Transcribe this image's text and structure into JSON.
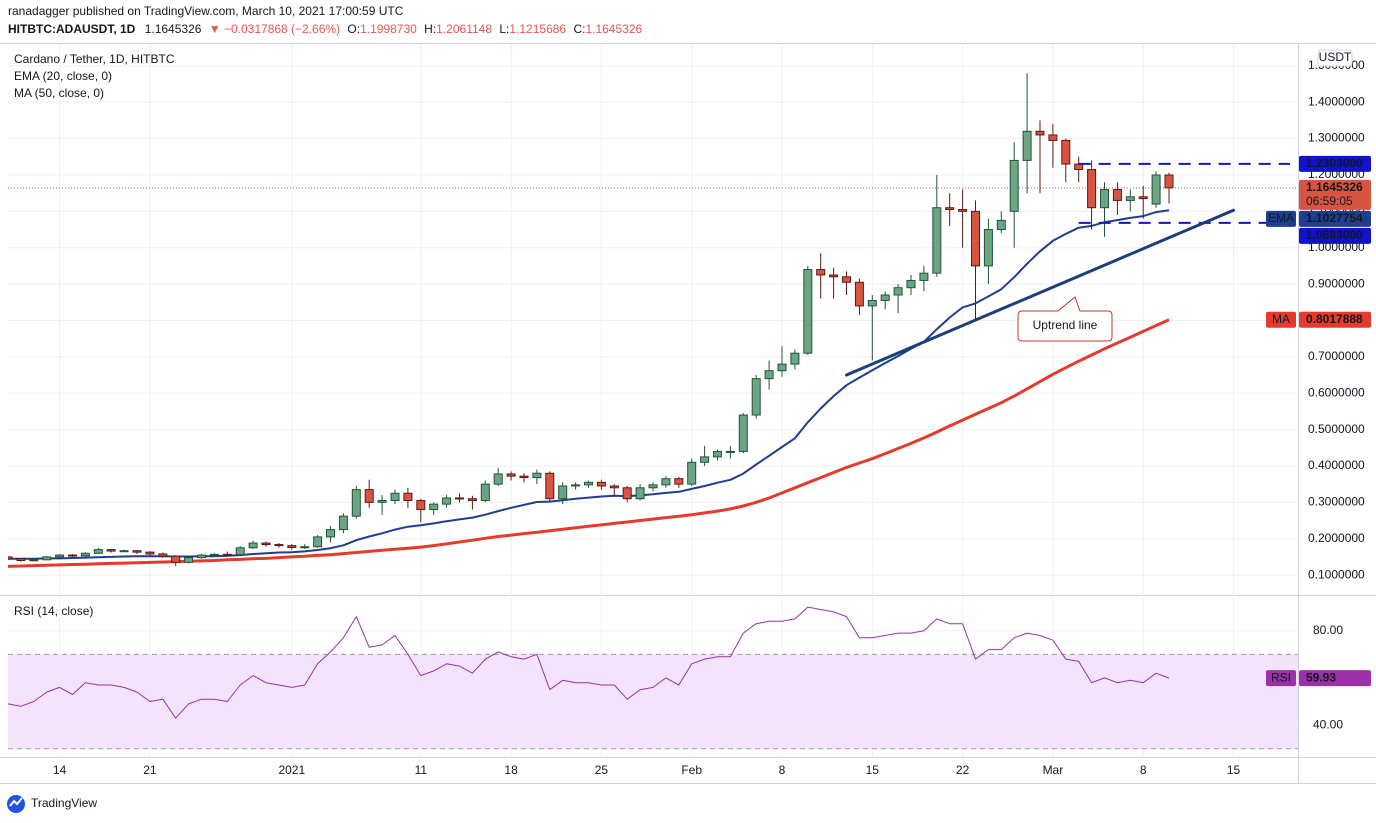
{
  "header": {
    "publisher": "ranadagger published on TradingView.com, March 10, 2021 17:00:59 UTC",
    "symbol": "HITBTC:ADAUSDT, 1D",
    "last": "1.1645326",
    "change": "▼ −0.0317868 (−2.66%)",
    "ohlc": [
      {
        "key": "O:",
        "value": "1.1998730"
      },
      {
        "key": "H:",
        "value": "1.2061148"
      },
      {
        "key": "L:",
        "value": "1.1215686"
      },
      {
        "key": "C:",
        "value": "1.1645326"
      }
    ]
  },
  "chart_data": [
    {
      "type": "candlestick",
      "title": "Cardano / Tether, 1D, HITBTC",
      "unit": "USDT",
      "up_color": "#6ba583",
      "down_color": "#d75442",
      "x": [
        "2020-12-10",
        "2020-12-11",
        "2020-12-12",
        "2020-12-13",
        "2020-12-14",
        "2020-12-15",
        "2020-12-16",
        "2020-12-17",
        "2020-12-18",
        "2020-12-19",
        "2020-12-20",
        "2020-12-21",
        "2020-12-22",
        "2020-12-23",
        "2020-12-24",
        "2020-12-25",
        "2020-12-26",
        "2020-12-27",
        "2020-12-28",
        "2020-12-29",
        "2020-12-30",
        "2020-12-31",
        "2021-01-01",
        "2021-01-02",
        "2021-01-03",
        "2021-01-04",
        "2021-01-05",
        "2021-01-06",
        "2021-01-07",
        "2021-01-08",
        "2021-01-09",
        "2021-01-10",
        "2021-01-11",
        "2021-01-12",
        "2021-01-13",
        "2021-01-14",
        "2021-01-15",
        "2021-01-16",
        "2021-01-17",
        "2021-01-18",
        "2021-01-19",
        "2021-01-20",
        "2021-01-21",
        "2021-01-22",
        "2021-01-23",
        "2021-01-24",
        "2021-01-25",
        "2021-01-26",
        "2021-01-27",
        "2021-01-28",
        "2021-01-29",
        "2021-01-30",
        "2021-01-31",
        "2021-02-01",
        "2021-02-02",
        "2021-02-03",
        "2021-02-04",
        "2021-02-05",
        "2021-02-06",
        "2021-02-07",
        "2021-02-08",
        "2021-02-09",
        "2021-02-10",
        "2021-02-11",
        "2021-02-12",
        "2021-02-13",
        "2021-02-14",
        "2021-02-15",
        "2021-02-16",
        "2021-02-17",
        "2021-02-18",
        "2021-02-19",
        "2021-02-20",
        "2021-02-21",
        "2021-02-22",
        "2021-02-23",
        "2021-02-24",
        "2021-02-25",
        "2021-02-26",
        "2021-02-27",
        "2021-02-28",
        "2021-03-01",
        "2021-03-02",
        "2021-03-03",
        "2021-03-04",
        "2021-03-05",
        "2021-03-06",
        "2021-03-07",
        "2021-03-08",
        "2021-03-09",
        "2021-03-10"
      ],
      "open": [
        0.15,
        0.145,
        0.14,
        0.142,
        0.15,
        0.155,
        0.153,
        0.16,
        0.17,
        0.166,
        0.167,
        0.163,
        0.158,
        0.152,
        0.135,
        0.148,
        0.155,
        0.157,
        0.156,
        0.175,
        0.188,
        0.184,
        0.181,
        0.176,
        0.178,
        0.205,
        0.225,
        0.262,
        0.335,
        0.3,
        0.305,
        0.325,
        0.305,
        0.28,
        0.295,
        0.312,
        0.31,
        0.305,
        0.35,
        0.378,
        0.372,
        0.368,
        0.38,
        0.31,
        0.345,
        0.348,
        0.355,
        0.345,
        0.34,
        0.31,
        0.34,
        0.348,
        0.365,
        0.35,
        0.41,
        0.425,
        0.44,
        0.44,
        0.54,
        0.64,
        0.662,
        0.68,
        0.71,
        0.94,
        0.925,
        0.92,
        0.905,
        0.84,
        0.855,
        0.87,
        0.89,
        0.91,
        0.93,
        1.11,
        1.105,
        1.1,
        0.95,
        1.05,
        1.1,
        1.24,
        1.32,
        1.31,
        1.295,
        1.23,
        1.215,
        1.11,
        1.16,
        1.13,
        1.14,
        1.12,
        1.199873
      ],
      "high": [
        0.152,
        0.147,
        0.145,
        0.153,
        0.158,
        0.158,
        0.163,
        0.175,
        0.172,
        0.17,
        0.169,
        0.166,
        0.162,
        0.155,
        0.15,
        0.158,
        0.16,
        0.165,
        0.18,
        0.195,
        0.192,
        0.188,
        0.185,
        0.185,
        0.21,
        0.235,
        0.27,
        0.345,
        0.362,
        0.32,
        0.335,
        0.34,
        0.31,
        0.3,
        0.32,
        0.325,
        0.318,
        0.36,
        0.395,
        0.385,
        0.38,
        0.39,
        0.385,
        0.355,
        0.355,
        0.36,
        0.362,
        0.35,
        0.345,
        0.35,
        0.355,
        0.372,
        0.37,
        0.42,
        0.455,
        0.445,
        0.455,
        0.545,
        0.65,
        0.69,
        0.73,
        0.72,
        0.95,
        0.985,
        0.945,
        0.935,
        0.915,
        0.87,
        0.88,
        0.9,
        0.925,
        0.95,
        1.2,
        1.15,
        1.16,
        1.13,
        1.08,
        1.1,
        1.29,
        1.48,
        1.35,
        1.34,
        1.3,
        1.25,
        1.24,
        1.18,
        1.18,
        1.16,
        1.17,
        1.21,
        1.2061148
      ],
      "low": [
        0.142,
        0.137,
        0.138,
        0.141,
        0.148,
        0.15,
        0.151,
        0.158,
        0.162,
        0.163,
        0.158,
        0.154,
        0.148,
        0.125,
        0.132,
        0.145,
        0.152,
        0.15,
        0.155,
        0.172,
        0.178,
        0.175,
        0.17,
        0.172,
        0.175,
        0.19,
        0.215,
        0.255,
        0.285,
        0.265,
        0.295,
        0.285,
        0.245,
        0.265,
        0.285,
        0.3,
        0.28,
        0.3,
        0.345,
        0.36,
        0.355,
        0.35,
        0.3,
        0.295,
        0.335,
        0.34,
        0.335,
        0.32,
        0.3,
        0.305,
        0.33,
        0.34,
        0.34,
        0.345,
        0.4,
        0.415,
        0.42,
        0.435,
        0.53,
        0.61,
        0.645,
        0.665,
        0.705,
        0.86,
        0.86,
        0.87,
        0.815,
        0.69,
        0.83,
        0.82,
        0.87,
        0.88,
        0.92,
        1.06,
        1.0,
        0.8,
        0.9,
        1.04,
        1.0,
        1.15,
        1.15,
        1.22,
        1.18,
        1.18,
        1.05,
        1.03,
        1.09,
        1.1,
        1.08,
        1.11,
        1.1215686
      ],
      "close": [
        0.145,
        0.14,
        0.142,
        0.15,
        0.155,
        0.153,
        0.16,
        0.17,
        0.166,
        0.167,
        0.163,
        0.158,
        0.152,
        0.135,
        0.148,
        0.155,
        0.157,
        0.156,
        0.175,
        0.188,
        0.184,
        0.181,
        0.176,
        0.178,
        0.205,
        0.225,
        0.262,
        0.335,
        0.3,
        0.305,
        0.325,
        0.305,
        0.28,
        0.295,
        0.312,
        0.31,
        0.305,
        0.35,
        0.378,
        0.372,
        0.368,
        0.38,
        0.31,
        0.345,
        0.348,
        0.355,
        0.345,
        0.34,
        0.31,
        0.34,
        0.348,
        0.365,
        0.35,
        0.41,
        0.425,
        0.44,
        0.44,
        0.54,
        0.64,
        0.662,
        0.68,
        0.71,
        0.94,
        0.925,
        0.92,
        0.905,
        0.84,
        0.855,
        0.87,
        0.89,
        0.91,
        0.93,
        1.11,
        1.105,
        1.1,
        0.95,
        1.05,
        1.075,
        1.24,
        1.32,
        1.31,
        1.295,
        1.23,
        1.215,
        1.11,
        1.16,
        1.13,
        1.14,
        1.135,
        1.2,
        1.1645326
      ],
      "last_label": "1.1645326",
      "countdown": "06:59:05",
      "series": [
        {
          "name": "EMA (20, close, 0)",
          "tag": "EMA",
          "color": "#1e3f8f",
          "last_label": "1.1027754",
          "values": [
            0.145,
            0.145,
            0.145,
            0.146,
            0.146,
            0.147,
            0.148,
            0.149,
            0.15,
            0.151,
            0.152,
            0.152,
            0.152,
            0.151,
            0.151,
            0.152,
            0.152,
            0.153,
            0.155,
            0.158,
            0.16,
            0.162,
            0.163,
            0.165,
            0.169,
            0.174,
            0.182,
            0.196,
            0.206,
            0.215,
            0.225,
            0.233,
            0.237,
            0.242,
            0.248,
            0.253,
            0.258,
            0.266,
            0.276,
            0.285,
            0.293,
            0.301,
            0.302,
            0.306,
            0.31,
            0.313,
            0.316,
            0.318,
            0.317,
            0.319,
            0.322,
            0.326,
            0.329,
            0.337,
            0.345,
            0.354,
            0.362,
            0.379,
            0.404,
            0.428,
            0.452,
            0.476,
            0.52,
            0.558,
            0.592,
            0.622,
            0.643,
            0.663,
            0.683,
            0.702,
            0.722,
            0.741,
            0.776,
            0.808,
            0.836,
            0.847,
            0.866,
            0.886,
            0.919,
            0.956,
            0.99,
            1.019,
            1.038,
            1.055,
            1.06,
            1.07,
            1.076,
            1.082,
            1.087,
            1.098,
            1.1027754
          ]
        },
        {
          "name": "MA (50, close, 0)",
          "tag": "MA",
          "color": "#e53b2c",
          "last_label": "0.8017888",
          "values": [
            0.124,
            0.125,
            0.126,
            0.127,
            0.128,
            0.129,
            0.13,
            0.131,
            0.132,
            0.133,
            0.134,
            0.135,
            0.136,
            0.137,
            0.138,
            0.139,
            0.14,
            0.142,
            0.143,
            0.145,
            0.146,
            0.148,
            0.15,
            0.152,
            0.154,
            0.156,
            0.159,
            0.162,
            0.165,
            0.168,
            0.171,
            0.174,
            0.177,
            0.181,
            0.186,
            0.191,
            0.196,
            0.201,
            0.206,
            0.21,
            0.214,
            0.218,
            0.222,
            0.226,
            0.23,
            0.234,
            0.238,
            0.242,
            0.246,
            0.25,
            0.254,
            0.258,
            0.262,
            0.266,
            0.271,
            0.276,
            0.282,
            0.29,
            0.3,
            0.312,
            0.326,
            0.34,
            0.354,
            0.368,
            0.382,
            0.396,
            0.408,
            0.42,
            0.434,
            0.448,
            0.462,
            0.477,
            0.493,
            0.51,
            0.526,
            0.542,
            0.558,
            0.574,
            0.592,
            0.612,
            0.632,
            0.652,
            0.67,
            0.688,
            0.705,
            0.722,
            0.738,
            0.754,
            0.77,
            0.786,
            0.8017888
          ]
        }
      ],
      "xlim": [
        "2020-12-10",
        "2021-03-20"
      ],
      "xticks": [
        {
          "value": "2020-12-14",
          "label": "14"
        },
        {
          "value": "2020-12-21",
          "label": "21"
        },
        {
          "value": "2021-01-01",
          "label": "2021"
        },
        {
          "value": "2021-01-11",
          "label": "11"
        },
        {
          "value": "2021-01-18",
          "label": "18"
        },
        {
          "value": "2021-01-25",
          "label": "25"
        },
        {
          "value": "2021-02-01",
          "label": "Feb"
        },
        {
          "value": "2021-02-08",
          "label": "8"
        },
        {
          "value": "2021-02-15",
          "label": "15"
        },
        {
          "value": "2021-02-22",
          "label": "22"
        },
        {
          "value": "2021-03-01",
          "label": "Mar"
        },
        {
          "value": "2021-03-08",
          "label": "8"
        },
        {
          "value": "2021-03-15",
          "label": "15"
        }
      ],
      "ylim": [
        0.048,
        1.56
      ],
      "yticks": [
        {
          "value": 0.1,
          "label": "0.1000000"
        },
        {
          "value": 0.2,
          "label": "0.2000000"
        },
        {
          "value": 0.3,
          "label": "0.3000000"
        },
        {
          "value": 0.4,
          "label": "0.4000000"
        },
        {
          "value": 0.5,
          "label": "0.5000000"
        },
        {
          "value": 0.6,
          "label": "0.6000000"
        },
        {
          "value": 0.7,
          "label": "0.7000000"
        },
        {
          "value": 0.8,
          "label": "0.8000000"
        },
        {
          "value": 0.9,
          "label": "0.9000000"
        },
        {
          "value": 1.0,
          "label": "1.0000000"
        },
        {
          "value": 1.1,
          "label": "1.1000000"
        },
        {
          "value": 1.2,
          "label": "1.2000000"
        },
        {
          "value": 1.3,
          "label": "1.3000000"
        },
        {
          "value": 1.4,
          "label": "1.4000000"
        },
        {
          "value": 1.5,
          "label": "1.5000000"
        }
      ],
      "grid": true,
      "levels": [
        {
          "value": 1.2303,
          "label": "1.2303000",
          "start": "2021-03-03",
          "color": "#1212c8"
        },
        {
          "value": 1.0683,
          "label": "1.0683000",
          "start": "2021-03-03",
          "color": "#1212c8"
        }
      ],
      "annotations": [
        {
          "label": "Uptrend line",
          "x": [
            "2021-02-13",
            "2021-03-15"
          ],
          "y": [
            0.65,
            1.103
          ],
          "color": "#1c3f7a"
        }
      ]
    },
    {
      "type": "line",
      "title": "RSI (14, close)",
      "series": [
        {
          "name": "RSI",
          "color": "#9b30a8",
          "last_label": "59.93",
          "values": [
            49,
            48,
            50,
            54,
            56,
            53,
            58,
            57,
            57,
            56,
            54,
            50,
            51,
            43,
            49,
            51,
            51,
            50,
            57,
            61,
            58,
            57,
            56,
            57,
            66,
            71,
            77,
            86,
            73,
            74,
            78,
            70,
            61,
            63,
            66,
            65,
            62,
            68,
            71,
            69,
            68,
            70,
            55,
            59,
            58,
            58,
            57,
            57,
            51,
            55,
            56,
            60,
            57,
            66,
            68,
            69,
            69,
            79,
            83,
            84,
            84,
            85,
            90,
            89,
            88,
            86,
            77,
            77,
            78,
            79,
            79,
            80,
            85,
            83,
            83,
            68,
            72,
            72,
            77,
            79,
            78,
            76,
            68,
            67,
            58,
            60,
            58,
            59,
            58,
            62,
            59.93
          ]
        }
      ],
      "ylim": [
        26.5,
        94.3
      ],
      "yticks": [
        {
          "value": 40,
          "label": "40.00"
        },
        {
          "value": 80,
          "label": "80.00"
        }
      ],
      "band": [
        30,
        70
      ],
      "band_color": "#f3e3fb"
    }
  ],
  "footer": {
    "brand": "TradingView"
  }
}
